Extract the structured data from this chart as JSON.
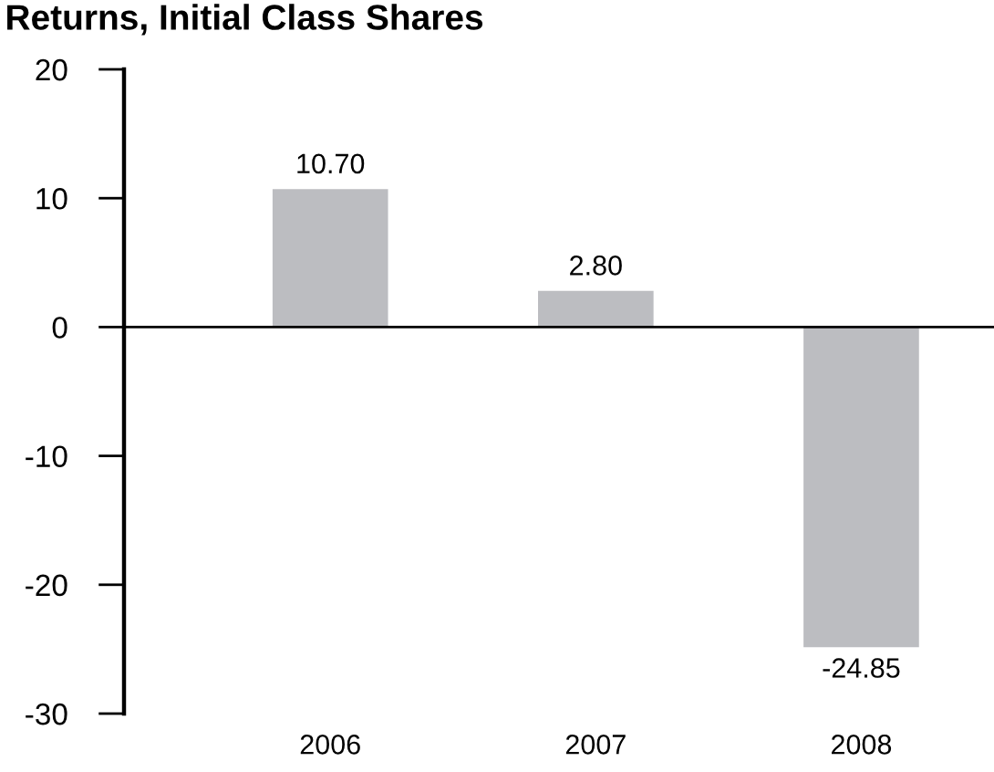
{
  "chart_data": {
    "type": "bar",
    "title": "Returns, Initial Class Shares",
    "categories": [
      "2006",
      "2007",
      "2008"
    ],
    "values": [
      10.7,
      2.8,
      -24.85
    ],
    "value_labels": [
      "10.70",
      "2.80",
      "-24.85"
    ],
    "color": "#bcbdc1",
    "ylim": [
      -30,
      20
    ],
    "yticks": [
      -30,
      -20,
      -10,
      0,
      10,
      20
    ],
    "grid": false,
    "ref_lines": [
      {
        "axis": "y",
        "value": 0,
        "color": "#000000",
        "line_style": "solid"
      }
    ]
  }
}
